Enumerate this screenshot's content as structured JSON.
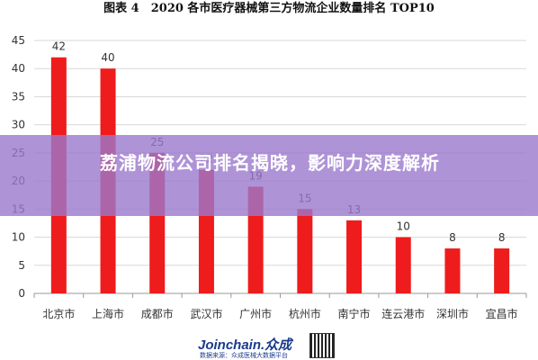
{
  "header": {
    "title": "图表 4　2020 各市医疗器械第三方物流企业数量排名 TOP10"
  },
  "overlay": {
    "headline": "荔浦物流公司排名揭晓，影响力深度解析"
  },
  "footer": {
    "brand": "Joinchain.众成",
    "subtitle": "数据来源：众成医械大数据平台",
    "qr_icon": "qr-code-icon"
  },
  "colors": {
    "bar": "#ee1c1c",
    "grid": "#d9d9d9",
    "axis_text": "#333333",
    "overlay": "#9b78cd"
  },
  "chart_data": {
    "type": "bar",
    "title": "2020 各市医疗器械第三方物流企业数量排名 TOP10",
    "categories": [
      "北京市",
      "上海市",
      "成都市",
      "武汉市",
      "广州市",
      "杭州市",
      "南宁市",
      "连云港市",
      "深圳市",
      "宜昌市"
    ],
    "values": [
      42,
      40,
      25,
      22,
      19,
      15,
      13,
      10,
      8,
      8
    ],
    "ylim": [
      0,
      45
    ],
    "yticks": [
      0,
      5,
      10,
      15,
      20,
      25,
      30,
      35,
      40,
      45
    ],
    "grid": true,
    "xlabel": "",
    "ylabel": ""
  }
}
